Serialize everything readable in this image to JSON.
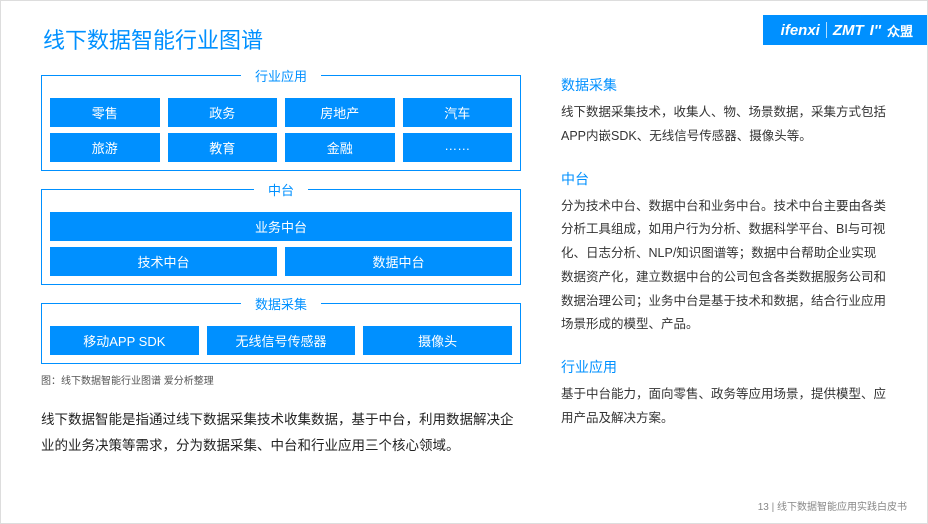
{
  "colors": {
    "accent": "#0090ff",
    "bg": "#ffffff",
    "text": "#333333"
  },
  "header": {
    "title": "线下数据智能行业图谱",
    "logo1": "ifenxi",
    "logo2": "ZMT",
    "logo3": "众盟"
  },
  "diagram": {
    "g1": {
      "title": "行业应用",
      "r1": [
        "零售",
        "政务",
        "房地产",
        "汽车"
      ],
      "r2": [
        "旅游",
        "教育",
        "金融",
        "……"
      ]
    },
    "g2": {
      "title": "中台",
      "r1": [
        "业务中台"
      ],
      "r2": [
        "技术中台",
        "数据中台"
      ]
    },
    "g3": {
      "title": "数据采集",
      "r1": [
        "移动APP SDK",
        "无线信号传感器",
        "摄像头"
      ]
    },
    "caption": "图：线下数据智能行业图谱 爱分析整理",
    "summary": "线下数据智能是指通过线下数据采集技术收集数据，基于中台，利用数据解决企业的业务决策等需求，分为数据采集、中台和行业应用三个核心领域。"
  },
  "right": {
    "s1": {
      "head": "数据采集",
      "body": "线下数据采集技术，收集人、物、场景数据，采集方式包括APP内嵌SDK、无线信号传感器、摄像头等。"
    },
    "s2": {
      "head": "中台",
      "body": "分为技术中台、数据中台和业务中台。技术中台主要由各类分析工具组成，如用户行为分析、数据科学平台、BI与可视化、日志分析、NLP/知识图谱等；数据中台帮助企业实现数据资产化，建立数据中台的公司包含各类数据服务公司和数据治理公司；业务中台是基于技术和数据，结合行业应用场景形成的模型、产品。"
    },
    "s3": {
      "head": "行业应用",
      "body": "基于中台能力，面向零售、政务等应用场景，提供模型、应用产品及解决方案。"
    }
  },
  "footer": "13 | 线下数据智能应用实践白皮书"
}
